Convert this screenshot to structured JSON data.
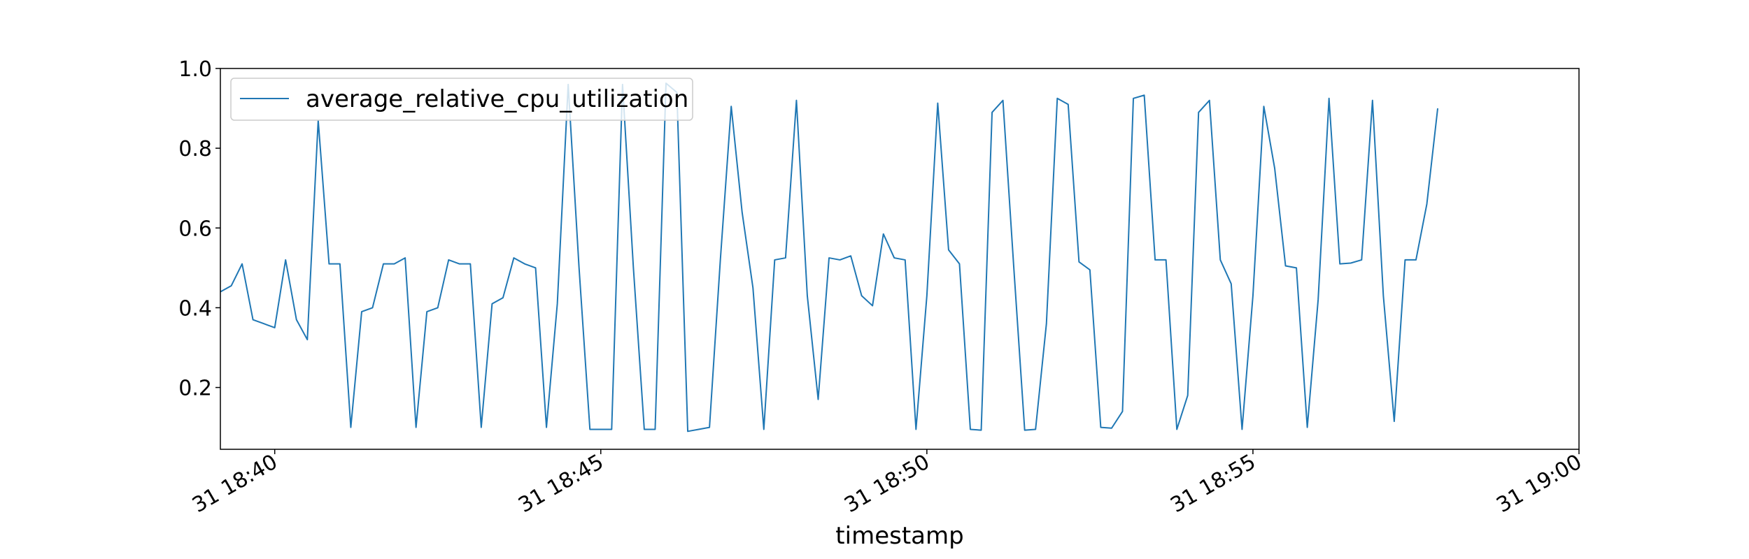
{
  "chart_data": {
    "type": "line",
    "title": "",
    "xlabel": "timestamp",
    "ylabel": "",
    "legend": {
      "placement": "top-left"
    },
    "grid": false,
    "xlim": [
      "31 18:39:10",
      "31 19:00:00"
    ],
    "ylim": [
      0.045,
      1.0
    ],
    "x_ticks": [
      {
        "time": "31 18:40:00",
        "label": "31 18:40"
      },
      {
        "time": "31 18:45:00",
        "label": "31 18:45"
      },
      {
        "time": "31 18:50:00",
        "label": "31 18:50"
      },
      {
        "time": "31 18:55:00",
        "label": "31 18:55"
      },
      {
        "time": "31 19:00:00",
        "label": "31 19:00"
      }
    ],
    "y_ticks": [
      0.2,
      0.4,
      0.6,
      0.8,
      1.0
    ],
    "y_tick_labels": [
      "0.2",
      "0.4",
      "0.6",
      "0.8",
      "1.0"
    ],
    "series": [
      {
        "name": "average_relative_cpu_utilization",
        "color": "#1f77b4",
        "interval_seconds": 10,
        "start": "31 18:39:10",
        "values": [
          0.44,
          0.455,
          0.51,
          0.37,
          0.36,
          0.35,
          0.52,
          0.37,
          0.32,
          0.87,
          0.51,
          0.51,
          0.1,
          0.39,
          0.4,
          0.51,
          0.51,
          0.525,
          0.1,
          0.39,
          0.4,
          0.52,
          0.51,
          0.51,
          0.1,
          0.41,
          0.425,
          0.525,
          0.51,
          0.5,
          0.1,
          0.41,
          0.96,
          0.5,
          0.095,
          0.095,
          0.095,
          0.96,
          0.5,
          0.095,
          0.095,
          0.963,
          0.94,
          0.09,
          0.095,
          0.1,
          0.52,
          0.905,
          0.64,
          0.45,
          0.095,
          0.52,
          0.525,
          0.92,
          0.43,
          0.17,
          0.525,
          0.52,
          0.53,
          0.43,
          0.405,
          0.585,
          0.525,
          0.52,
          0.095,
          0.43,
          0.913,
          0.545,
          0.51,
          0.095,
          0.093,
          0.89,
          0.92,
          0.5,
          0.093,
          0.095,
          0.36,
          0.925,
          0.91,
          0.515,
          0.495,
          0.1,
          0.098,
          0.14,
          0.925,
          0.933,
          0.52,
          0.52,
          0.095,
          0.18,
          0.89,
          0.92,
          0.52,
          0.46,
          0.095,
          0.43,
          0.905,
          0.75,
          0.505,
          0.5,
          0.1,
          0.42,
          0.925,
          0.51,
          0.512,
          0.52,
          0.92,
          0.43,
          0.115,
          0.52,
          0.52,
          0.66,
          0.9
        ]
      }
    ]
  }
}
